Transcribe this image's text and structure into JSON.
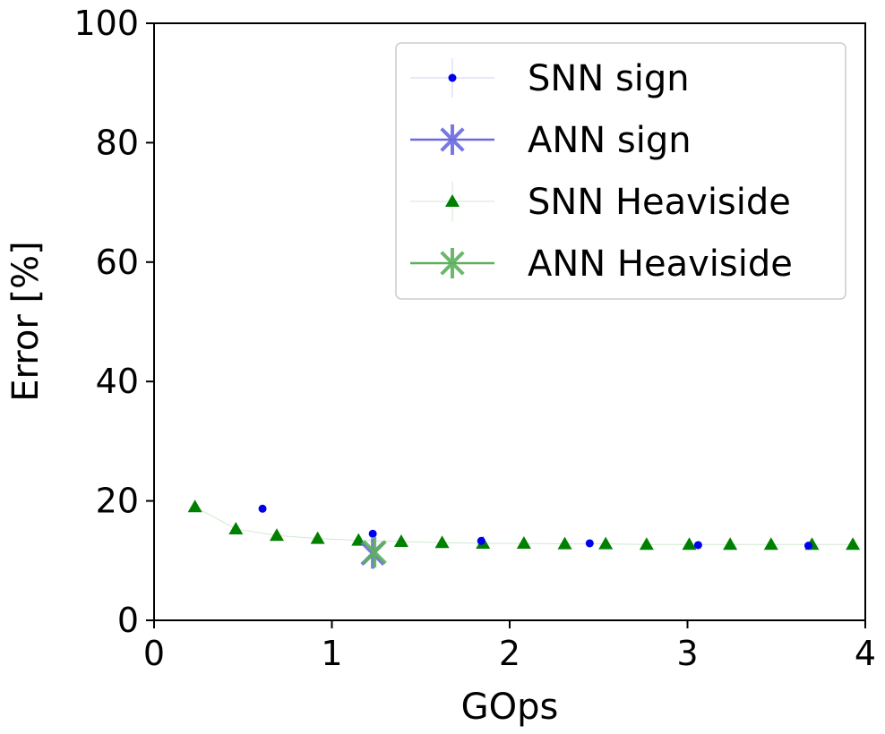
{
  "chart_data": {
    "type": "scatter",
    "title": "",
    "xlabel": "GOps",
    "ylabel": "Error [%]",
    "xlim": [
      0,
      4
    ],
    "ylim": [
      0,
      100
    ],
    "xticks": [
      0,
      1,
      2,
      3,
      4
    ],
    "yticks": [
      0,
      20,
      40,
      60,
      80,
      100
    ],
    "grid": false,
    "legend_position": "top-right",
    "series": [
      {
        "name": "SNN sign",
        "marker": "dot",
        "color": "#0000ee",
        "x": [
          0.61,
          1.23,
          1.84,
          2.45,
          3.06,
          3.68
        ],
        "y": [
          18.7,
          14.5,
          13.3,
          12.9,
          12.6,
          12.5
        ]
      },
      {
        "name": "ANN sign",
        "marker": "x-star",
        "color": "#6a6ae0",
        "x": [
          1.23
        ],
        "y": [
          11.2
        ]
      },
      {
        "name": "SNN Heaviside",
        "marker": "triangle",
        "color": "#008000",
        "x": [
          0.23,
          0.46,
          0.69,
          0.92,
          1.15,
          1.39,
          1.62,
          1.85,
          2.08,
          2.31,
          2.54,
          2.77,
          3.01,
          3.24,
          3.47,
          3.7,
          3.93
        ],
        "y": [
          19.0,
          15.3,
          14.2,
          13.7,
          13.4,
          13.2,
          13.0,
          12.9,
          12.9,
          12.8,
          12.8,
          12.7,
          12.7,
          12.7,
          12.7,
          12.7,
          12.7
        ]
      },
      {
        "name": "ANN Heaviside",
        "marker": "x-star",
        "color": "#5cb05c",
        "x": [
          1.24
        ],
        "y": [
          11.4
        ]
      }
    ]
  }
}
